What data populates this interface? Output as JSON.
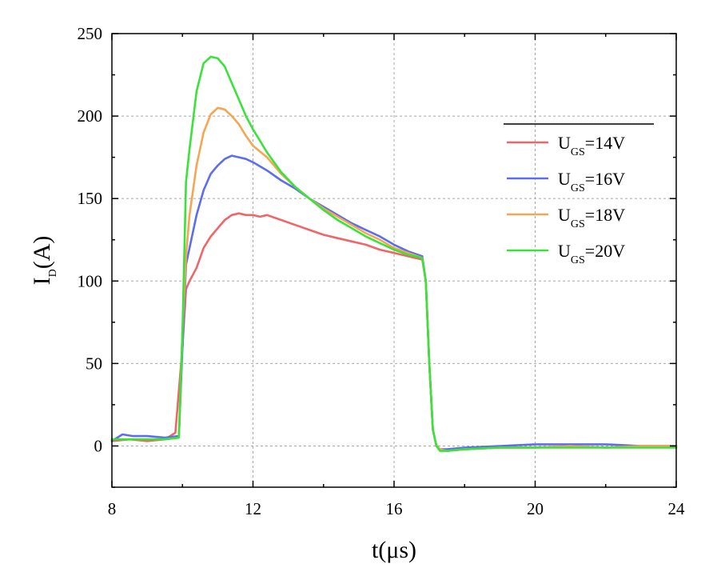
{
  "chart_data": {
    "type": "line",
    "xlabel": {
      "main": "t(μs)"
    },
    "ylabel": {
      "main": "I",
      "sub": "D",
      "rest": "(A)"
    },
    "xlim": [
      8,
      24
    ],
    "ylim": [
      -25,
      250
    ],
    "xticks": [
      8,
      12,
      16,
      20,
      24
    ],
    "yticks": [
      0,
      50,
      100,
      150,
      200,
      250
    ],
    "grid": true,
    "legend_position": "upper-right",
    "series": [
      {
        "name": "U_GS=14V",
        "label": {
          "main": "U",
          "sub": "GS",
          "rest": "=14V"
        },
        "color": "#ef6666",
        "x": [
          8,
          8.5,
          9,
          9.5,
          9.8,
          10.0,
          10.1,
          10.2,
          10.4,
          10.6,
          10.8,
          11.0,
          11.2,
          11.4,
          11.6,
          11.8,
          12.0,
          12.2,
          12.4,
          12.8,
          13.2,
          13.6,
          14.0,
          14.4,
          14.8,
          15.2,
          15.6,
          16.0,
          16.4,
          16.8,
          16.9,
          17.0,
          17.1,
          17.2,
          17.3,
          17.5,
          18,
          19,
          20,
          21,
          22,
          23,
          24
        ],
        "y": [
          3,
          4,
          3,
          4,
          8,
          60,
          95,
          100,
          108,
          120,
          127,
          132,
          137,
          140,
          141,
          140,
          140,
          139,
          140,
          137,
          134,
          131,
          128,
          126,
          124,
          122,
          119,
          117,
          115,
          113,
          100,
          50,
          10,
          0,
          -2,
          -3,
          -2,
          -1,
          -1,
          0,
          -1,
          0,
          0
        ]
      },
      {
        "name": "U_GS=16V",
        "label": {
          "main": "U",
          "sub": "GS",
          "rest": "=16V"
        },
        "color": "#5c6ef0",
        "x": [
          8,
          8.3,
          8.6,
          9,
          9.5,
          9.9,
          10.0,
          10.1,
          10.2,
          10.4,
          10.6,
          10.8,
          11.0,
          11.2,
          11.4,
          11.6,
          11.8,
          12.0,
          12.4,
          12.8,
          13.2,
          13.6,
          14.0,
          14.4,
          14.8,
          15.2,
          15.6,
          16.0,
          16.4,
          16.8,
          16.9,
          17.0,
          17.1,
          17.2,
          17.3,
          17.5,
          18,
          19,
          20,
          21,
          22,
          23,
          24
        ],
        "y": [
          3,
          7,
          6,
          6,
          5,
          6,
          60,
          110,
          120,
          140,
          155,
          165,
          170,
          174,
          176,
          175,
          174,
          172,
          167,
          161,
          156,
          150,
          145,
          140,
          135,
          131,
          127,
          122,
          118,
          115,
          100,
          50,
          10,
          0,
          -2,
          -2,
          -1,
          0,
          1,
          1,
          1,
          0,
          0
        ]
      },
      {
        "name": "U_GS=18V",
        "label": {
          "main": "U",
          "sub": "GS",
          "rest": "=18V"
        },
        "color": "#f5a654",
        "x": [
          8,
          8.5,
          9,
          9.5,
          9.9,
          10.0,
          10.1,
          10.2,
          10.4,
          10.6,
          10.8,
          11.0,
          11.2,
          11.4,
          11.6,
          11.8,
          12.0,
          12.4,
          12.8,
          13.2,
          13.6,
          14.0,
          14.4,
          14.8,
          15.2,
          15.6,
          16.0,
          16.4,
          16.8,
          16.9,
          17.0,
          17.1,
          17.2,
          17.3,
          17.5,
          18,
          19,
          20,
          21,
          22,
          23,
          24
        ],
        "y": [
          4,
          4,
          4,
          4,
          5,
          70,
          115,
          140,
          170,
          190,
          201,
          205,
          204,
          200,
          195,
          188,
          182,
          175,
          165,
          157,
          150,
          144,
          139,
          134,
          129,
          125,
          120,
          117,
          114,
          100,
          50,
          10,
          0,
          -2,
          -3,
          -2,
          -1,
          -1,
          0,
          -1,
          0,
          0
        ]
      },
      {
        "name": "U_GS=20V",
        "label": {
          "main": "U",
          "sub": "GS",
          "rest": "=20V"
        },
        "color": "#3ae23a",
        "x": [
          8,
          8.5,
          9,
          9.5,
          9.9,
          10.0,
          10.1,
          10.2,
          10.4,
          10.6,
          10.8,
          11.0,
          11.2,
          11.4,
          11.6,
          11.8,
          12.0,
          12.4,
          12.8,
          13.2,
          13.6,
          14.0,
          14.4,
          14.8,
          15.2,
          15.6,
          16.0,
          16.4,
          16.8,
          16.9,
          17.0,
          17.1,
          17.2,
          17.3,
          17.5,
          18,
          19,
          20,
          21,
          22,
          23,
          24
        ],
        "y": [
          4,
          4,
          4,
          4,
          5,
          70,
          160,
          180,
          215,
          232,
          236,
          235,
          230,
          220,
          210,
          200,
          192,
          178,
          166,
          157,
          150,
          143,
          137,
          132,
          127,
          123,
          119,
          116,
          114,
          100,
          50,
          10,
          0,
          -3,
          -3,
          -2,
          -1,
          -1,
          -1,
          -1,
          -1,
          -1
        ]
      }
    ]
  }
}
